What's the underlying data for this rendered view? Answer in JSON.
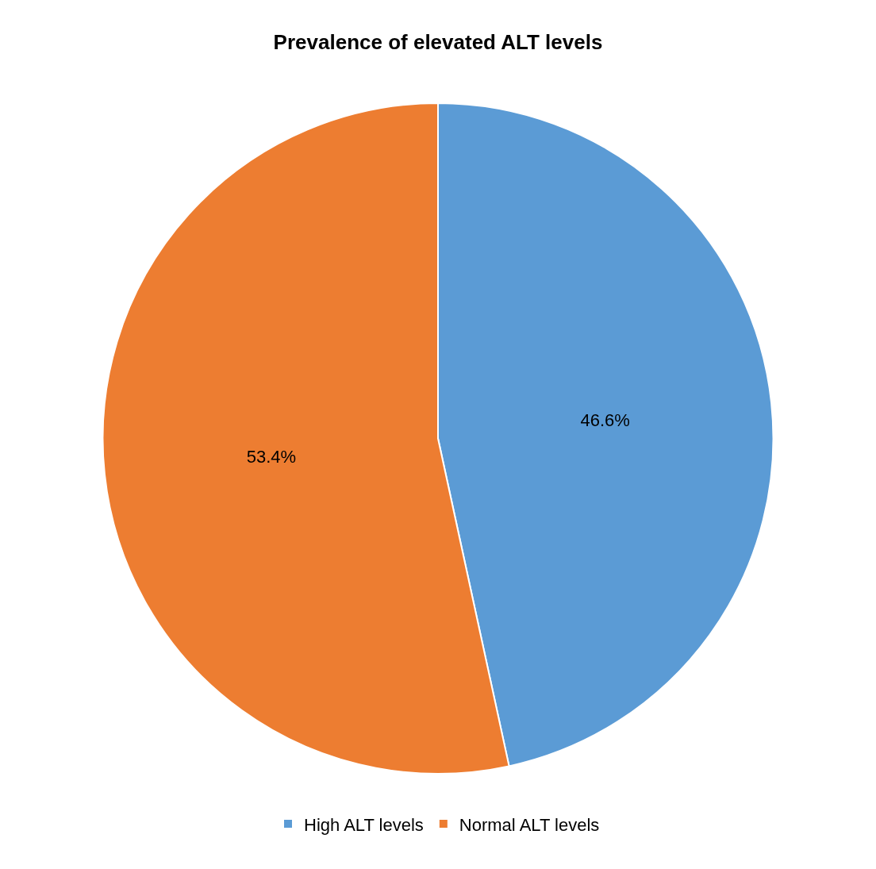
{
  "chart_data": {
    "type": "pie",
    "title": "Prevalence of elevated ALT levels",
    "categories": [
      "High ALT levels",
      "Normal ALT levels"
    ],
    "values": [
      46.6,
      53.4
    ],
    "value_labels": [
      "46.6%",
      "53.4%"
    ],
    "colors": [
      "#5b9bd5",
      "#ed7d31"
    ],
    "legend": "bottom"
  }
}
